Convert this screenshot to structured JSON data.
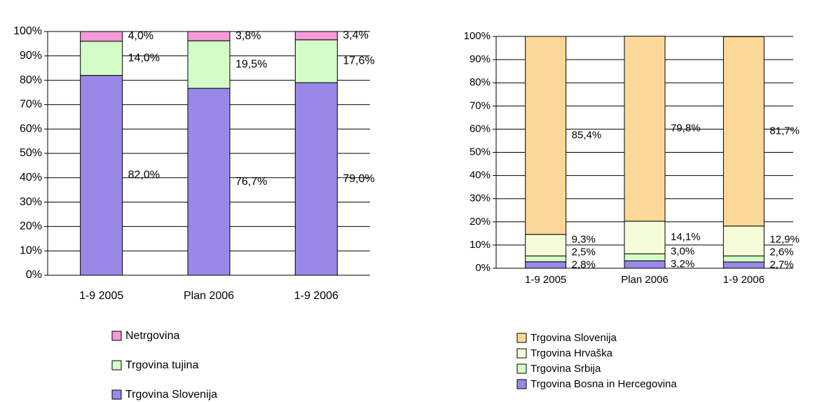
{
  "chart_data": [
    {
      "type": "stacked_bar",
      "categories": [
        "1-9 2005",
        "Plan 2006",
        "1-9 2006"
      ],
      "series": [
        {
          "name": "Trgovina Slovenija",
          "color": "#9988e8",
          "values": [
            82.0,
            76.7,
            79.0
          ],
          "value_labels": [
            "82,0%",
            "76,7%",
            "79,0%"
          ]
        },
        {
          "name": "Trgovina tujina",
          "color": "#d4fcc8",
          "values": [
            14.0,
            19.5,
            17.6
          ],
          "value_labels": [
            "14,0%",
            "19,5%",
            "17,6%"
          ]
        },
        {
          "name": "Netrgovina",
          "color": "#f49ad8",
          "values": [
            4.0,
            3.8,
            3.4
          ],
          "value_labels": [
            "4,0%",
            "3,8%",
            "3,4%"
          ]
        }
      ],
      "ylim": [
        0,
        100
      ],
      "yticks": [
        {
          "value": 0,
          "label": "0%"
        },
        {
          "value": 10,
          "label": "10%"
        },
        {
          "value": 20,
          "label": "20%"
        },
        {
          "value": 30,
          "label": "30%"
        },
        {
          "value": 40,
          "label": "40%"
        },
        {
          "value": 50,
          "label": "50%"
        },
        {
          "value": 60,
          "label": "60%"
        },
        {
          "value": 70,
          "label": "70%"
        },
        {
          "value": 80,
          "label": "80%"
        },
        {
          "value": 90,
          "label": "90%"
        },
        {
          "value": 100,
          "label": "100%"
        }
      ],
      "grid": true
    },
    {
      "type": "stacked_bar",
      "categories": [
        "1-9 2005",
        "Plan 2006",
        "1-9 2006"
      ],
      "series": [
        {
          "name": "Trgovina Bosna in Hercegovina",
          "color": "#9988e8",
          "values": [
            2.8,
            3.2,
            2.7
          ],
          "value_labels": [
            "2,8%",
            "3,2%",
            "2,7%"
          ]
        },
        {
          "name": "Trgovina Srbija",
          "color": "#d4fcc8",
          "values": [
            2.5,
            3.0,
            2.6
          ],
          "value_labels": [
            "2,5%",
            "3,0%",
            "2,6%"
          ]
        },
        {
          "name": "Trgovina Hrvaška",
          "color": "#f4fcd8",
          "values": [
            9.3,
            14.1,
            12.9
          ],
          "value_labels": [
            "9,3%",
            "14,1%",
            "12,9%"
          ]
        },
        {
          "name": "Trgovina Slovenija",
          "color": "#fcd898",
          "values": [
            85.4,
            79.8,
            81.7
          ],
          "value_labels": [
            "85,4%",
            "79,8%",
            "81,7%"
          ]
        }
      ],
      "ylim": [
        0,
        100
      ],
      "yticks": [
        {
          "value": 0,
          "label": "0%"
        },
        {
          "value": 10,
          "label": "10%"
        },
        {
          "value": 20,
          "label": "20%"
        },
        {
          "value": 30,
          "label": "30%"
        },
        {
          "value": 40,
          "label": "40%"
        },
        {
          "value": 50,
          "label": "50%"
        },
        {
          "value": 60,
          "label": "60%"
        },
        {
          "value": 70,
          "label": "70%"
        },
        {
          "value": 80,
          "label": "80%"
        },
        {
          "value": 90,
          "label": "90%"
        },
        {
          "value": 100,
          "label": "100%"
        }
      ],
      "grid": true
    }
  ]
}
